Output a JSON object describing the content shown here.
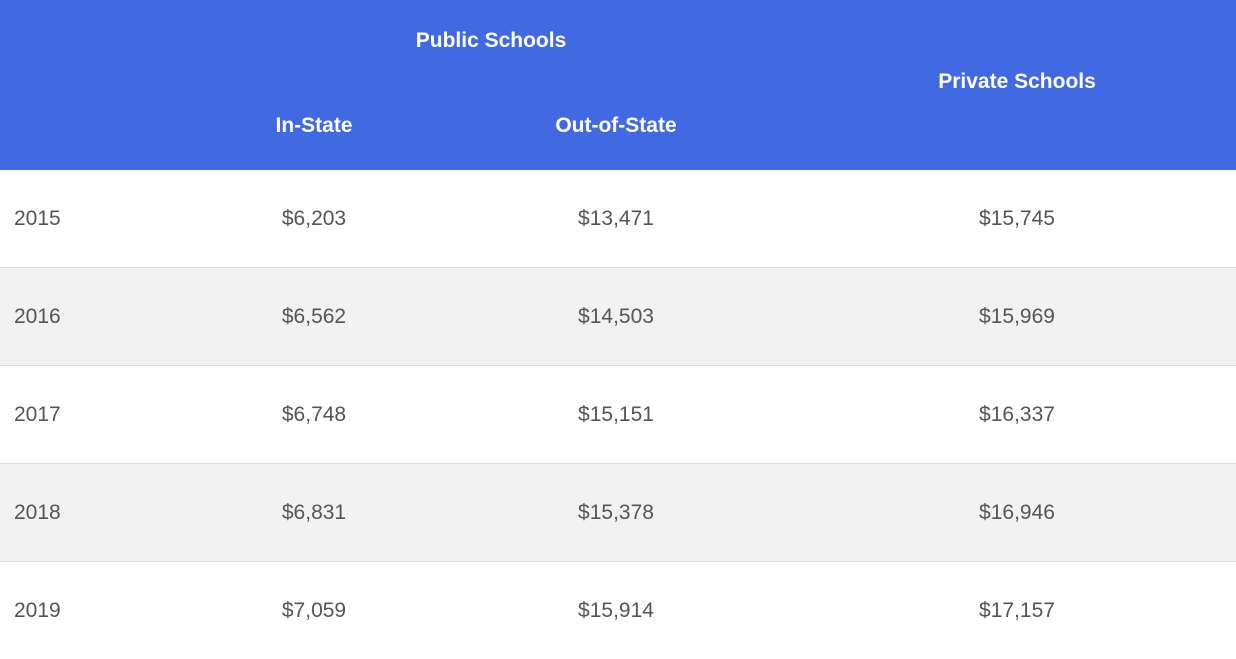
{
  "chart_data": {
    "type": "table",
    "header": {
      "group_public": "Public Schools",
      "in_state": "In-State",
      "out_of_state": "Out-of-State",
      "private": "Private Schools"
    },
    "columns": [
      "",
      "In-State",
      "Out-of-State",
      "Private Schools"
    ],
    "rows": [
      {
        "year": "2015",
        "in_state": "$6,203",
        "out_of_state": "$13,471",
        "private": "$15,745"
      },
      {
        "year": "2016",
        "in_state": "$6,562",
        "out_of_state": "$14,503",
        "private": "$15,969"
      },
      {
        "year": "2017",
        "in_state": "$6,748",
        "out_of_state": "$15,151",
        "private": "$16,337"
      },
      {
        "year": "2018",
        "in_state": "$6,831",
        "out_of_state": "$15,378",
        "private": "$16,946"
      },
      {
        "year": "2019",
        "in_state": "$7,059",
        "out_of_state": "$15,914",
        "private": "$17,157"
      }
    ]
  },
  "colors": {
    "header_bg": "#4169E1",
    "header_text": "#ffffff",
    "row_alt_bg": "#f2f2f2",
    "cell_text": "#555555",
    "row_divider": "#dcdcdc"
  }
}
